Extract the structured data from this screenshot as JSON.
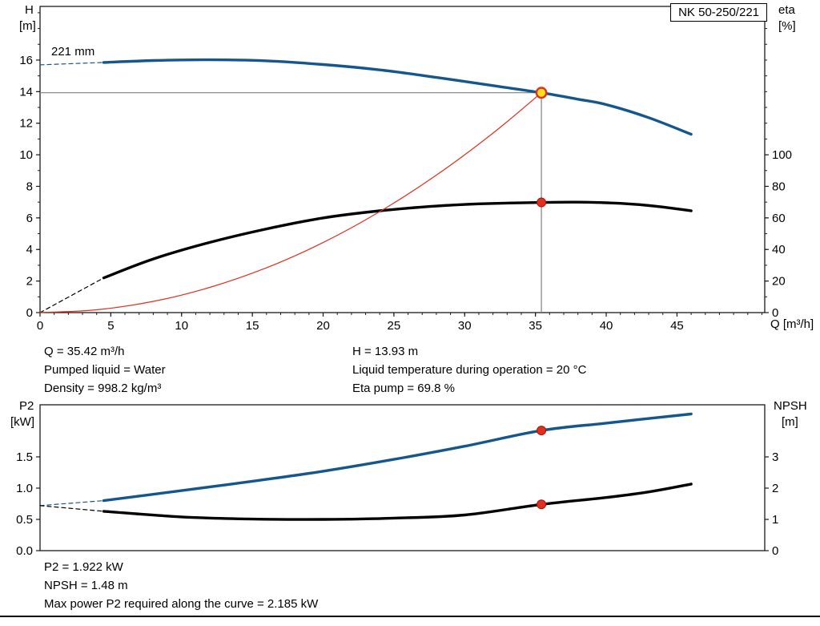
{
  "pump_label_box": {
    "text": "NK 50-250/221"
  },
  "impeller_label": "221 mm",
  "axis_labels": {
    "top_left": [
      "H",
      "[m]"
    ],
    "top_right": [
      "eta",
      "[%]"
    ],
    "x": "Q [m³/h]",
    "bottom_left": [
      "P2",
      "[kW]"
    ],
    "bottom_right": [
      "NPSH",
      "[m]"
    ]
  },
  "duty_info": {
    "left": [
      "Q = 35.42 m³/h",
      "Pumped liquid = Water",
      "Density = 998.2 kg/m³"
    ],
    "right": [
      "H = 13.93 m",
      "Liquid temperature during operation = 20 °C",
      "Eta pump = 69.8 %"
    ]
  },
  "power_info": [
    "P2 = 1.922 kW",
    "NPSH = 1.48 m",
    "Max power P2 required along the curve = 2.185 kW"
  ],
  "colors": {
    "blue": "#15568d",
    "black": "#000000",
    "red": "#e0301e",
    "red_dark": "#a31208",
    "duty_fill": "#ffe01a",
    "ref": "#7f7f7f",
    "frame": "#1a1a1a"
  },
  "chart_data": [
    {
      "type": "line",
      "title": "NK 50-250/221 pump curve",
      "xlabel": "Q [m³/h]",
      "ylabel_left": "H [m]",
      "ylabel_right": "eta [%]",
      "xlim": [
        0,
        51.2
      ],
      "ylim_left": [
        0,
        19.4
      ],
      "ylim_right": [
        0,
        194
      ],
      "x_ticks": {
        "values": [
          0,
          5,
          10,
          15,
          20,
          25,
          30,
          35,
          40,
          45
        ],
        "labels": [
          "0",
          "5",
          "10",
          "15",
          "20",
          "25",
          "30",
          "35",
          "40",
          "45"
        ]
      },
      "y_left": {
        "values": [
          0,
          2,
          4,
          6,
          8,
          10,
          12,
          14,
          16
        ],
        "labels": [
          "0",
          "2",
          "4",
          "6",
          "8",
          "10",
          "12",
          "14",
          "16"
        ]
      },
      "y_right": {
        "values": [
          0,
          20,
          40,
          60,
          80,
          100
        ],
        "labels": [
          "0",
          "20",
          "40",
          "60",
          "80",
          "100"
        ]
      },
      "ref": {
        "q": 35.42,
        "h": 13.93
      },
      "series": [
        {
          "name": "head-curve-dashed",
          "axis": "left",
          "color": "blue",
          "width": 1.2,
          "dash": true,
          "x": [
            0,
            4.5
          ],
          "y": [
            15.7,
            15.85
          ]
        },
        {
          "name": "head-curve",
          "axis": "left",
          "color": "blue",
          "width": 3.4,
          "x": [
            4.5,
            8,
            12,
            16,
            20,
            24,
            28,
            32,
            35.42,
            38,
            40,
            43,
            46
          ],
          "y": [
            15.85,
            15.97,
            16.02,
            15.95,
            15.72,
            15.38,
            14.9,
            14.38,
            13.93,
            13.52,
            13.18,
            12.35,
            11.3
          ]
        },
        {
          "name": "eta-curve-dashed",
          "axis": "right",
          "color": "black",
          "width": 1.2,
          "dash": true,
          "x": [
            0,
            4.5
          ],
          "y": [
            0,
            22
          ]
        },
        {
          "name": "eta-curve",
          "axis": "right",
          "color": "black",
          "width": 3.4,
          "x": [
            4.5,
            8,
            12,
            16,
            20,
            24,
            28,
            31,
            35.42,
            38,
            41,
            43.5,
            46
          ],
          "y": [
            22,
            34,
            44.5,
            53,
            60,
            64.5,
            67.5,
            68.9,
            69.8,
            70,
            69.2,
            67.4,
            64.5
          ]
        },
        {
          "name": "system-curve",
          "axis": "left",
          "color": "red",
          "width": 1.2,
          "x": [
            0,
            4,
            8,
            12,
            16,
            20,
            24,
            28,
            32,
            35.42
          ],
          "y": [
            0,
            0.18,
            0.71,
            1.6,
            2.84,
            4.44,
            6.4,
            8.71,
            11.37,
            13.93
          ]
        }
      ],
      "markers": [
        {
          "name": "duty-point",
          "x": 35.42,
          "y": 13.93,
          "axis": "left",
          "style": "duty"
        },
        {
          "name": "eta-point",
          "x": 35.42,
          "y": 69.8,
          "axis": "right",
          "style": "dot"
        }
      ]
    },
    {
      "type": "line",
      "title": "P2 and NPSH curves",
      "xlabel": "",
      "ylabel_left": "P2 [kW]",
      "ylabel_right": "NPSH [m]",
      "xlim": [
        0,
        51.2
      ],
      "ylim_left": [
        0,
        2.333
      ],
      "ylim_right": [
        0,
        4.667
      ],
      "x_ticks": {
        "values": [],
        "labels": []
      },
      "y_left": {
        "values": [
          0,
          0.5,
          1,
          1.5
        ],
        "labels": [
          "0.0",
          "0.5",
          "1.0",
          "1.5"
        ]
      },
      "y_right": {
        "values": [
          0,
          1,
          2,
          3
        ],
        "labels": [
          "0",
          "1",
          "2",
          "3"
        ]
      },
      "series": [
        {
          "name": "p2-curve-dashed",
          "axis": "left",
          "color": "blue",
          "width": 1.2,
          "dash": true,
          "x": [
            0,
            4.5
          ],
          "y": [
            0.72,
            0.8
          ]
        },
        {
          "name": "p2-curve",
          "axis": "left",
          "color": "blue",
          "width": 3.4,
          "x": [
            4.5,
            10,
            15,
            20,
            25,
            30,
            35.42,
            40,
            46
          ],
          "y": [
            0.8,
            0.96,
            1.11,
            1.27,
            1.46,
            1.67,
            1.922,
            2.04,
            2.185
          ]
        },
        {
          "name": "npsh-curve-dashed",
          "axis": "right",
          "color": "black",
          "width": 1.2,
          "dash": true,
          "x": [
            0,
            4.5
          ],
          "y": [
            1.44,
            1.26
          ]
        },
        {
          "name": "npsh-curve",
          "axis": "right",
          "color": "black",
          "width": 3.4,
          "x": [
            4.5,
            10,
            15,
            20,
            25,
            30,
            35.42,
            40,
            43,
            46
          ],
          "y": [
            1.26,
            1.08,
            1.01,
            1.0,
            1.04,
            1.14,
            1.48,
            1.7,
            1.88,
            2.13
          ]
        }
      ],
      "markers": [
        {
          "name": "p2-point",
          "x": 35.42,
          "y": 1.922,
          "axis": "left",
          "style": "dot"
        },
        {
          "name": "npsh-point",
          "x": 35.42,
          "y": 1.48,
          "axis": "right",
          "style": "dot"
        }
      ]
    }
  ]
}
